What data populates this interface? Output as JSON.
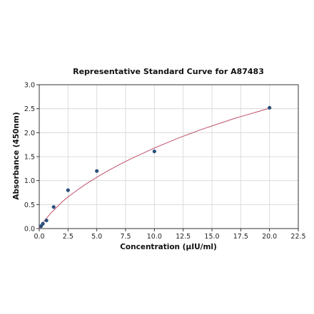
{
  "chart_data": {
    "type": "scatter",
    "title": "Representative Standard Curve for A87483",
    "xlabel": "Concentration (μIU/ml)",
    "ylabel": "Absorbance (450nm)",
    "xlim": [
      0,
      22.5
    ],
    "ylim": [
      0,
      3.0
    ],
    "xticks": [
      0.0,
      2.5,
      5.0,
      7.5,
      10.0,
      12.5,
      15.0,
      17.5,
      20.0,
      22.5
    ],
    "xtick_labels": [
      "0.0",
      "2.5",
      "5.0",
      "7.5",
      "10.0",
      "12.5",
      "15.0",
      "17.5",
      "20.0",
      "22.5"
    ],
    "yticks": [
      0.0,
      0.5,
      1.0,
      1.5,
      2.0,
      2.5,
      3.0
    ],
    "ytick_labels": [
      "0.0",
      "0.5",
      "1.0",
      "1.5",
      "2.0",
      "2.5",
      "3.0"
    ],
    "grid": true,
    "points": {
      "x": [
        0.156,
        0.313,
        0.625,
        1.25,
        2.5,
        5.0,
        10.0,
        20.0
      ],
      "y": [
        0.05,
        0.1,
        0.17,
        0.45,
        0.8,
        1.2,
        1.61,
        2.52
      ]
    },
    "fit_curve": {
      "x": [
        0.0,
        0.25,
        0.5,
        1.0,
        1.5,
        2.0,
        2.5,
        3.0,
        4.0,
        5.0,
        6.0,
        7.0,
        8.0,
        9.0,
        10.0,
        11.0,
        12.0,
        13.0,
        14.0,
        15.0,
        16.0,
        17.0,
        18.0,
        19.0,
        20.0
      ],
      "y": [
        0.0,
        0.1,
        0.18,
        0.32,
        0.44,
        0.56,
        0.66,
        0.75,
        0.92,
        1.07,
        1.21,
        1.34,
        1.46,
        1.57,
        1.68,
        1.78,
        1.88,
        1.97,
        2.06,
        2.14,
        2.22,
        2.3,
        2.37,
        2.44,
        2.51
      ]
    },
    "colors": {
      "points": "#2b4f7a",
      "curve": "#c0506a"
    }
  }
}
